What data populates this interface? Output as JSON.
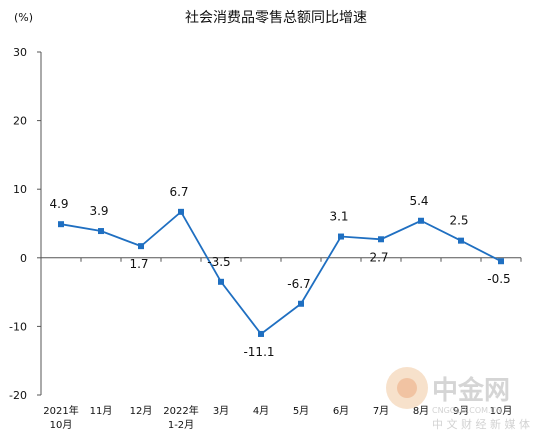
{
  "chart_data": {
    "type": "line",
    "title": "社会消费品零售总额同比增速",
    "unit_label": "(%)",
    "categories": [
      [
        "2021年",
        "10月"
      ],
      [
        "11月"
      ],
      [
        "12月"
      ],
      [
        "2022年",
        "1-2月"
      ],
      [
        "3月"
      ],
      [
        "4月"
      ],
      [
        "5月"
      ],
      [
        "6月"
      ],
      [
        "7月"
      ],
      [
        "8月"
      ],
      [
        "9月"
      ],
      [
        "10月"
      ]
    ],
    "values": [
      4.9,
      3.9,
      1.7,
      6.7,
      -3.5,
      -11.1,
      -6.7,
      3.1,
      2.7,
      5.4,
      2.5,
      -0.5
    ],
    "data_labels": [
      "4.9",
      "3.9",
      "1.7",
      "6.7",
      "-3.5",
      "-11.1",
      "-6.7",
      "3.1",
      "2.7",
      "5.4",
      "2.5",
      "-0.5"
    ],
    "ylim": [
      -20,
      30
    ],
    "yticks": [
      -20,
      -10,
      0,
      10,
      20,
      30
    ],
    "grid": false,
    "legend": "none",
    "line_color": "#1f6fc1"
  },
  "watermark": {
    "brand": "中金网",
    "domain": "CNGOLD.COM.CN",
    "slogan": "中 文 财 经 新 媒 体"
  }
}
